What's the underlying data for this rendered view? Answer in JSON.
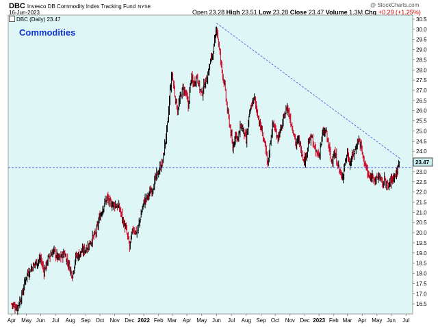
{
  "header": {
    "symbol": "DBC",
    "name": "Invesco DB Commodity Index Tracking Fund",
    "exchange": "NYSE",
    "date": "16-Jun-2023",
    "open_label": "Open",
    "open": "23.28",
    "high_label": "High",
    "high": "23.51",
    "low_label": "Low",
    "low": "23.28",
    "close_label": "Close",
    "close": "23.47",
    "volume_label": "Volume",
    "volume": "1.3M",
    "chg_label": "Chg",
    "chg": "+0.29 (+1.25%)",
    "credit": "@ StockCharts.com"
  },
  "legend": {
    "text": "DBC (Daily) 23.47"
  },
  "annotation": {
    "label": "Commodities"
  },
  "colors": {
    "plot_bg": "#dff6f6",
    "up": "#000000",
    "down": "#cc0020",
    "trendline": "#3a50d8",
    "support": "#3a50d8",
    "price_tag": "#c8eef0"
  },
  "chart_data": {
    "type": "ohlc",
    "title": "DBC (Daily) 23.47",
    "x_ticks": [
      "Apr",
      "May",
      "Jun",
      "Jul",
      "Aug",
      "Sep",
      "Oct",
      "Nov",
      "Dec",
      "2022",
      "Feb",
      "Mar",
      "Apr",
      "May",
      "Jun",
      "Jul",
      "Aug",
      "Sep",
      "Oct",
      "Nov",
      "Dec",
      "2023",
      "Feb",
      "Mar",
      "Apr",
      "May",
      "Jun",
      "Jul"
    ],
    "x_tick_index": [
      0,
      22,
      43,
      65,
      87,
      110,
      131,
      153,
      175,
      196,
      218,
      238,
      260,
      282,
      304,
      326,
      348,
      370,
      391,
      413,
      435,
      456,
      478,
      498,
      520,
      542,
      563,
      585
    ],
    "y_ticks": [
      16.5,
      17.0,
      17.5,
      18.0,
      18.5,
      19.0,
      19.5,
      20.0,
      20.5,
      21.0,
      21.5,
      22.0,
      22.5,
      23.0,
      23.5,
      24.0,
      24.5,
      25.0,
      25.5,
      26.0,
      26.5,
      27.0,
      27.5,
      28.0,
      28.5,
      29.0,
      29.5,
      30.0,
      30.5
    ],
    "ylim": [
      16.0,
      30.7
    ],
    "last_price": 23.47,
    "last_price_label": "23.47",
    "support_level": 23.2,
    "trendline": [
      [
        304,
        30.3
      ],
      [
        578,
        23.6
      ]
    ],
    "closes": [
      [
        0,
        16.5
      ],
      [
        8,
        16.3
      ],
      [
        15,
        16.9
      ],
      [
        22,
        17.9
      ],
      [
        30,
        18.3
      ],
      [
        38,
        18.6
      ],
      [
        43,
        18.7
      ],
      [
        48,
        18.1
      ],
      [
        55,
        18.8
      ],
      [
        62,
        19.1
      ],
      [
        70,
        18.7
      ],
      [
        78,
        19.0
      ],
      [
        85,
        18.4
      ],
      [
        90,
        17.9
      ],
      [
        95,
        18.8
      ],
      [
        102,
        19.0
      ],
      [
        110,
        19.2
      ],
      [
        118,
        19.6
      ],
      [
        125,
        20.0
      ],
      [
        131,
        20.8
      ],
      [
        136,
        21.3
      ],
      [
        141,
        21.7
      ],
      [
        147,
        21.4
      ],
      [
        153,
        21.4
      ],
      [
        160,
        21.2
      ],
      [
        165,
        20.6
      ],
      [
        170,
        20.1
      ],
      [
        175,
        19.3
      ],
      [
        180,
        20.2
      ],
      [
        186,
        20.0
      ],
      [
        192,
        20.9
      ],
      [
        196,
        21.5
      ],
      [
        202,
        21.8
      ],
      [
        208,
        22.1
      ],
      [
        214,
        22.7
      ],
      [
        218,
        23.0
      ],
      [
        224,
        23.5
      ],
      [
        228,
        24.5
      ],
      [
        232,
        25.5
      ],
      [
        235,
        27.0
      ],
      [
        238,
        27.8
      ],
      [
        242,
        26.8
      ],
      [
        246,
        26.0
      ],
      [
        250,
        26.6
      ],
      [
        254,
        27.1
      ],
      [
        258,
        26.9
      ],
      [
        262,
        26.2
      ],
      [
        266,
        27.6
      ],
      [
        270,
        27.3
      ],
      [
        275,
        27.7
      ],
      [
        279,
        27.1
      ],
      [
        282,
        26.8
      ],
      [
        286,
        27.3
      ],
      [
        290,
        27.6
      ],
      [
        294,
        28.3
      ],
      [
        298,
        28.8
      ],
      [
        302,
        29.5
      ],
      [
        304,
        30.2
      ],
      [
        308,
        29.0
      ],
      [
        312,
        28.0
      ],
      [
        316,
        27.2
      ],
      [
        320,
        26.0
      ],
      [
        324,
        25.2
      ],
      [
        328,
        24.1
      ],
      [
        332,
        24.9
      ],
      [
        336,
        24.6
      ],
      [
        340,
        25.3
      ],
      [
        344,
        25.0
      ],
      [
        348,
        24.5
      ],
      [
        352,
        25.6
      ],
      [
        356,
        26.3
      ],
      [
        360,
        26.6
      ],
      [
        364,
        26.0
      ],
      [
        368,
        25.3
      ],
      [
        372,
        24.9
      ],
      [
        376,
        24.2
      ],
      [
        380,
        23.3
      ],
      [
        384,
        24.6
      ],
      [
        388,
        25.4
      ],
      [
        391,
        25.0
      ],
      [
        395,
        24.7
      ],
      [
        400,
        25.1
      ],
      [
        405,
        25.8
      ],
      [
        409,
        26.2
      ],
      [
        413,
        25.6
      ],
      [
        418,
        25.0
      ],
      [
        422,
        24.3
      ],
      [
        426,
        24.6
      ],
      [
        430,
        24.0
      ],
      [
        435,
        23.5
      ],
      [
        440,
        24.4
      ],
      [
        445,
        24.7
      ],
      [
        450,
        24.0
      ],
      [
        456,
        23.8
      ],
      [
        461,
        24.8
      ],
      [
        466,
        25.0
      ],
      [
        470,
        24.3
      ],
      [
        474,
        23.5
      ],
      [
        478,
        23.9
      ],
      [
        482,
        23.6
      ],
      [
        486,
        23.1
      ],
      [
        490,
        22.6
      ],
      [
        494,
        23.4
      ],
      [
        498,
        23.9
      ],
      [
        502,
        23.4
      ],
      [
        506,
        23.8
      ],
      [
        510,
        24.1
      ],
      [
        514,
        24.6
      ],
      [
        518,
        24.3
      ],
      [
        520,
        23.9
      ],
      [
        524,
        23.4
      ],
      [
        528,
        22.9
      ],
      [
        532,
        22.6
      ],
      [
        536,
        22.9
      ],
      [
        540,
        22.5
      ],
      [
        542,
        22.7
      ],
      [
        546,
        22.8
      ],
      [
        550,
        22.3
      ],
      [
        554,
        22.7
      ],
      [
        558,
        22.2
      ],
      [
        563,
        22.6
      ],
      [
        567,
        22.8
      ],
      [
        571,
        22.9
      ],
      [
        575,
        23.47
      ]
    ]
  }
}
